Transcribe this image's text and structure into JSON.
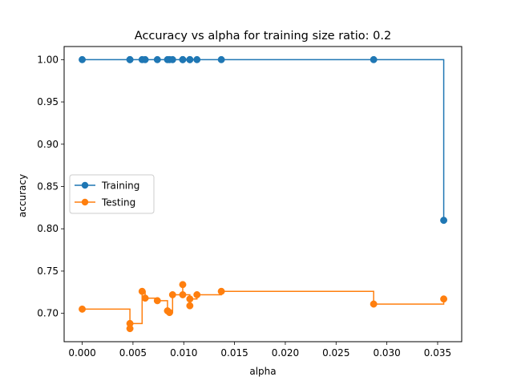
{
  "chart_data": {
    "type": "line",
    "drawstyle": "steps-post",
    "title": "Accuracy vs alpha for training size ratio: 0.2",
    "xlabel": "alpha",
    "ylabel": "accuracy",
    "xlim": [
      -0.00178,
      0.03737
    ],
    "ylim": [
      0.6665,
      1.0155
    ],
    "xticks": [
      0.0,
      0.005,
      0.01,
      0.015,
      0.02,
      0.025,
      0.03,
      0.035
    ],
    "xtick_labels": [
      "0.000",
      "0.005",
      "0.010",
      "0.015",
      "0.020",
      "0.025",
      "0.030",
      "0.035"
    ],
    "yticks": [
      0.7,
      0.75,
      0.8,
      0.85,
      0.9,
      0.95,
      1.0
    ],
    "ytick_labels": [
      "0.70",
      "0.75",
      "0.80",
      "0.85",
      "0.90",
      "0.95",
      "1.00"
    ],
    "grid": false,
    "legend": "center-left",
    "x": [
      0.0,
      0.0047,
      0.0047,
      0.0059,
      0.0062,
      0.0074,
      0.0084,
      0.0086,
      0.0089,
      0.0099,
      0.0099,
      0.0106,
      0.0106,
      0.0113,
      0.0137,
      0.0287,
      0.0356
    ],
    "series": [
      {
        "name": "Training",
        "color": "#1f77b4",
        "values": [
          1.0,
          1.0,
          1.0,
          1.0,
          1.0,
          1.0,
          1.0,
          1.0,
          1.0,
          1.0,
          1.0,
          1.0,
          1.0,
          1.0,
          1.0,
          1.0,
          0.81
        ]
      },
      {
        "name": "Testing",
        "color": "#ff7f0e",
        "values": [
          0.705,
          0.682,
          0.688,
          0.726,
          0.718,
          0.715,
          0.703,
          0.701,
          0.722,
          0.734,
          0.722,
          0.709,
          0.717,
          0.722,
          0.726,
          0.711,
          0.717
        ]
      }
    ]
  }
}
